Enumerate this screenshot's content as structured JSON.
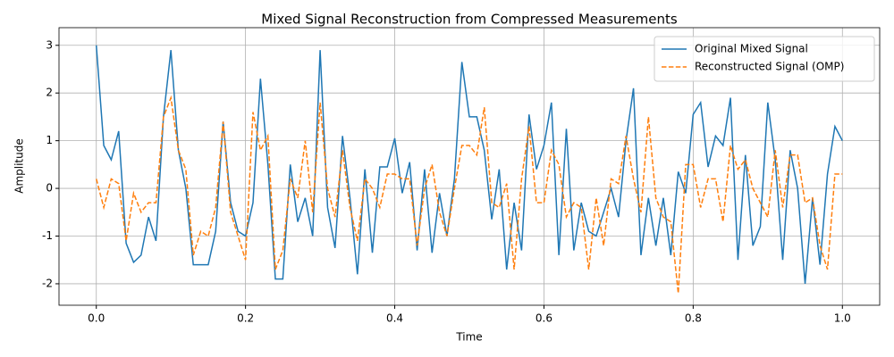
{
  "chart_data": {
    "type": "line",
    "title": "Mixed Signal Reconstruction from Compressed Measurements",
    "x_label": "Time",
    "y_label": "Amplitude",
    "x": [
      0,
      0.01,
      0.02,
      0.03,
      0.04,
      0.05,
      0.06,
      0.07,
      0.08,
      0.09,
      0.1,
      0.11,
      0.12,
      0.13,
      0.14,
      0.15,
      0.16,
      0.17,
      0.18,
      0.19,
      0.2,
      0.21,
      0.22,
      0.23,
      0.24,
      0.25,
      0.26,
      0.27,
      0.28,
      0.29,
      0.3,
      0.31,
      0.32,
      0.33,
      0.34,
      0.35,
      0.36,
      0.37,
      0.38,
      0.39,
      0.4,
      0.41,
      0.42,
      0.43,
      0.44,
      0.45,
      0.46,
      0.47,
      0.48,
      0.49,
      0.5,
      0.51,
      0.52,
      0.53,
      0.54,
      0.55,
      0.56,
      0.57,
      0.58,
      0.59,
      0.6,
      0.61,
      0.62,
      0.63,
      0.64,
      0.65,
      0.66,
      0.67,
      0.68,
      0.69,
      0.7,
      0.71,
      0.72,
      0.73,
      0.74,
      0.75,
      0.76,
      0.77,
      0.78,
      0.79,
      0.8,
      0.81,
      0.82,
      0.83,
      0.84,
      0.85,
      0.86,
      0.87,
      0.88,
      0.89,
      0.9,
      0.91,
      0.92,
      0.93,
      0.94,
      0.95,
      0.96,
      0.97,
      0.98,
      0.99,
      1
    ],
    "series": [
      {
        "name": "Original Mixed Signal",
        "color": "#1f77b4",
        "dash": "solid",
        "values": [
          3.0,
          0.9,
          0.6,
          1.2,
          -1.15,
          -1.55,
          -1.4,
          -0.6,
          -1.1,
          1.5,
          2.9,
          0.8,
          0.0,
          -1.6,
          -1.6,
          -1.6,
          -0.9,
          1.4,
          -0.3,
          -0.9,
          -1.0,
          -0.3,
          2.3,
          0.5,
          -1.9,
          -1.9,
          0.5,
          -0.7,
          -0.2,
          -1.0,
          2.9,
          -0.4,
          -1.25,
          1.1,
          -0.2,
          -1.8,
          0.4,
          -1.35,
          0.45,
          0.45,
          1.05,
          -0.1,
          0.55,
          -1.3,
          0.4,
          -1.35,
          -0.1,
          -1.0,
          0.2,
          2.65,
          1.5,
          1.5,
          0.8,
          -0.65,
          0.4,
          -1.7,
          -0.3,
          -1.3,
          1.55,
          0.4,
          0.9,
          1.8,
          -1.4,
          1.25,
          -1.3,
          -0.3,
          -0.9,
          -1.0,
          -0.5,
          0.0,
          -0.6,
          1.0,
          2.1,
          -1.4,
          -0.2,
          -1.2,
          -0.2,
          -1.4,
          0.35,
          -0.1,
          1.55,
          1.8,
          0.45,
          1.1,
          0.9,
          1.9,
          -1.5,
          0.7,
          -1.2,
          -0.8,
          1.8,
          0.6,
          -1.5,
          0.8,
          0.0,
          -2.0,
          -0.2,
          -1.6,
          0.3,
          1.3,
          1.0
        ]
      },
      {
        "name": "Reconstructed Signal (OMP)",
        "color": "#ff7f0e",
        "dash": "dashed",
        "values": [
          0.2,
          -0.4,
          0.2,
          0.1,
          -1.1,
          -0.1,
          -0.5,
          -0.3,
          -0.3,
          1.5,
          1.9,
          0.8,
          0.4,
          -1.4,
          -0.9,
          -1.0,
          -0.4,
          1.4,
          -0.5,
          -1.0,
          -1.5,
          1.6,
          0.8,
          1.1,
          -1.7,
          -1.3,
          0.2,
          -0.2,
          1.0,
          -0.5,
          1.8,
          0.0,
          -0.6,
          0.8,
          -0.4,
          -1.1,
          0.2,
          0.0,
          -0.4,
          0.3,
          0.3,
          0.2,
          0.2,
          -1.2,
          0.0,
          0.5,
          -0.5,
          -1.0,
          0.0,
          0.9,
          0.9,
          0.7,
          1.7,
          -0.3,
          -0.4,
          0.1,
          -1.7,
          0.2,
          1.3,
          -0.3,
          -0.3,
          0.8,
          0.5,
          -0.6,
          -0.3,
          -0.4,
          -1.7,
          -0.2,
          -1.2,
          0.2,
          0.1,
          1.1,
          0.2,
          -0.5,
          1.5,
          -0.2,
          -0.6,
          -0.7,
          -2.2,
          0.5,
          0.5,
          -0.4,
          0.2,
          0.2,
          -0.7,
          0.9,
          0.4,
          0.6,
          0.0,
          -0.3,
          -0.6,
          0.8,
          -0.4,
          0.7,
          0.7,
          -0.3,
          -0.2,
          -1.2,
          -1.7,
          0.3,
          0.3
        ]
      }
    ],
    "xlim": [
      -0.05,
      1.05
    ],
    "ylim": [
      -2.45,
      3.37
    ],
    "xticks": [
      {
        "value": 0,
        "label": "0.0"
      },
      {
        "value": 0.2,
        "label": "0.2"
      },
      {
        "value": 0.4,
        "label": "0.4"
      },
      {
        "value": 0.6,
        "label": "0.6"
      },
      {
        "value": 0.8,
        "label": "0.8"
      },
      {
        "value": 1,
        "label": "1.0"
      }
    ],
    "yticks": [
      -2,
      -1,
      0,
      1,
      2,
      3
    ],
    "grid": true,
    "legend": "upper right"
  }
}
